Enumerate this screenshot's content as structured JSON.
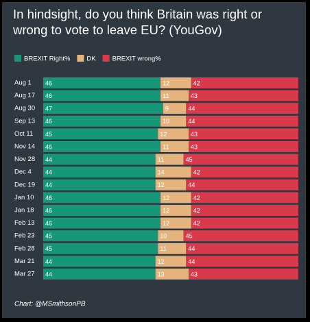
{
  "chart_data": {
    "type": "stacked-bar-horizontal",
    "title": "In hindsight, do you think Britain was right or wrong to vote to leave EU? (YouGov)",
    "categories": [
      "Aug 1",
      "Aug 17",
      "Aug 30",
      "Sep 13",
      "Oct 11",
      "Nov 14",
      "Nov 28",
      "Dec 4",
      "Dec 19",
      "Jan 10",
      "Jan 18",
      "Feb 13",
      "Feb 23",
      "Feb 28",
      "Mar 21",
      "Mar 27"
    ],
    "series": [
      {
        "name": "BREXIT Right%",
        "color": "#16977a",
        "values": [
          46,
          46,
          47,
          46,
          45,
          46,
          44,
          44,
          44,
          46,
          46,
          46,
          45,
          45,
          44,
          44
        ]
      },
      {
        "name": "DK",
        "color": "#e4b47c",
        "values": [
          12,
          11,
          9,
          10,
          12,
          11,
          11,
          14,
          12,
          12,
          12,
          12,
          10,
          11,
          12,
          13
        ]
      },
      {
        "name": "BREXIT wrong%",
        "color": "#d8394b",
        "values": [
          42,
          43,
          44,
          44,
          43,
          43,
          45,
          42,
          44,
          42,
          42,
          42,
          45,
          44,
          44,
          43
        ]
      }
    ],
    "legend": "top-left",
    "source": "Chart: @MSmithsonPB"
  }
}
